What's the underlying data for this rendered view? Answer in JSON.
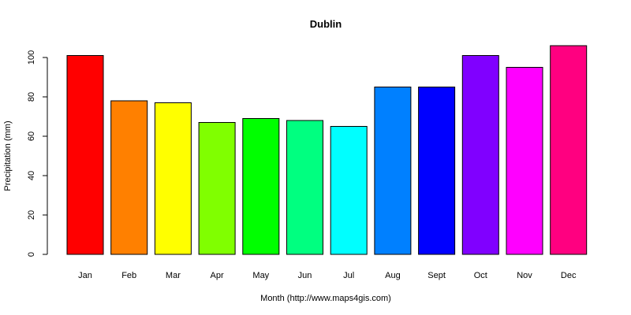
{
  "chart_data": {
    "type": "bar",
    "title": "Dublin",
    "xlabel": "Month (http://www.maps4gis.com)",
    "ylabel": "Precipitation (mm)",
    "categories": [
      "Jan",
      "Feb",
      "Mar",
      "Apr",
      "May",
      "Jun",
      "Jul",
      "Aug",
      "Sept",
      "Oct",
      "Nov",
      "Dec"
    ],
    "values": [
      101,
      78,
      77,
      67,
      69,
      68,
      65,
      85,
      85,
      101,
      95,
      106
    ],
    "colors": [
      "#FF0000",
      "#FF8000",
      "#FFFF00",
      "#80FF00",
      "#00FF00",
      "#00FF80",
      "#00FFFF",
      "#0080FF",
      "#0000FF",
      "#8000FF",
      "#FF00FF",
      "#FF0080"
    ],
    "ylim": [
      0,
      106
    ],
    "yticks": [
      0,
      20,
      40,
      60,
      80,
      100
    ],
    "grid": false,
    "legend": "none"
  }
}
